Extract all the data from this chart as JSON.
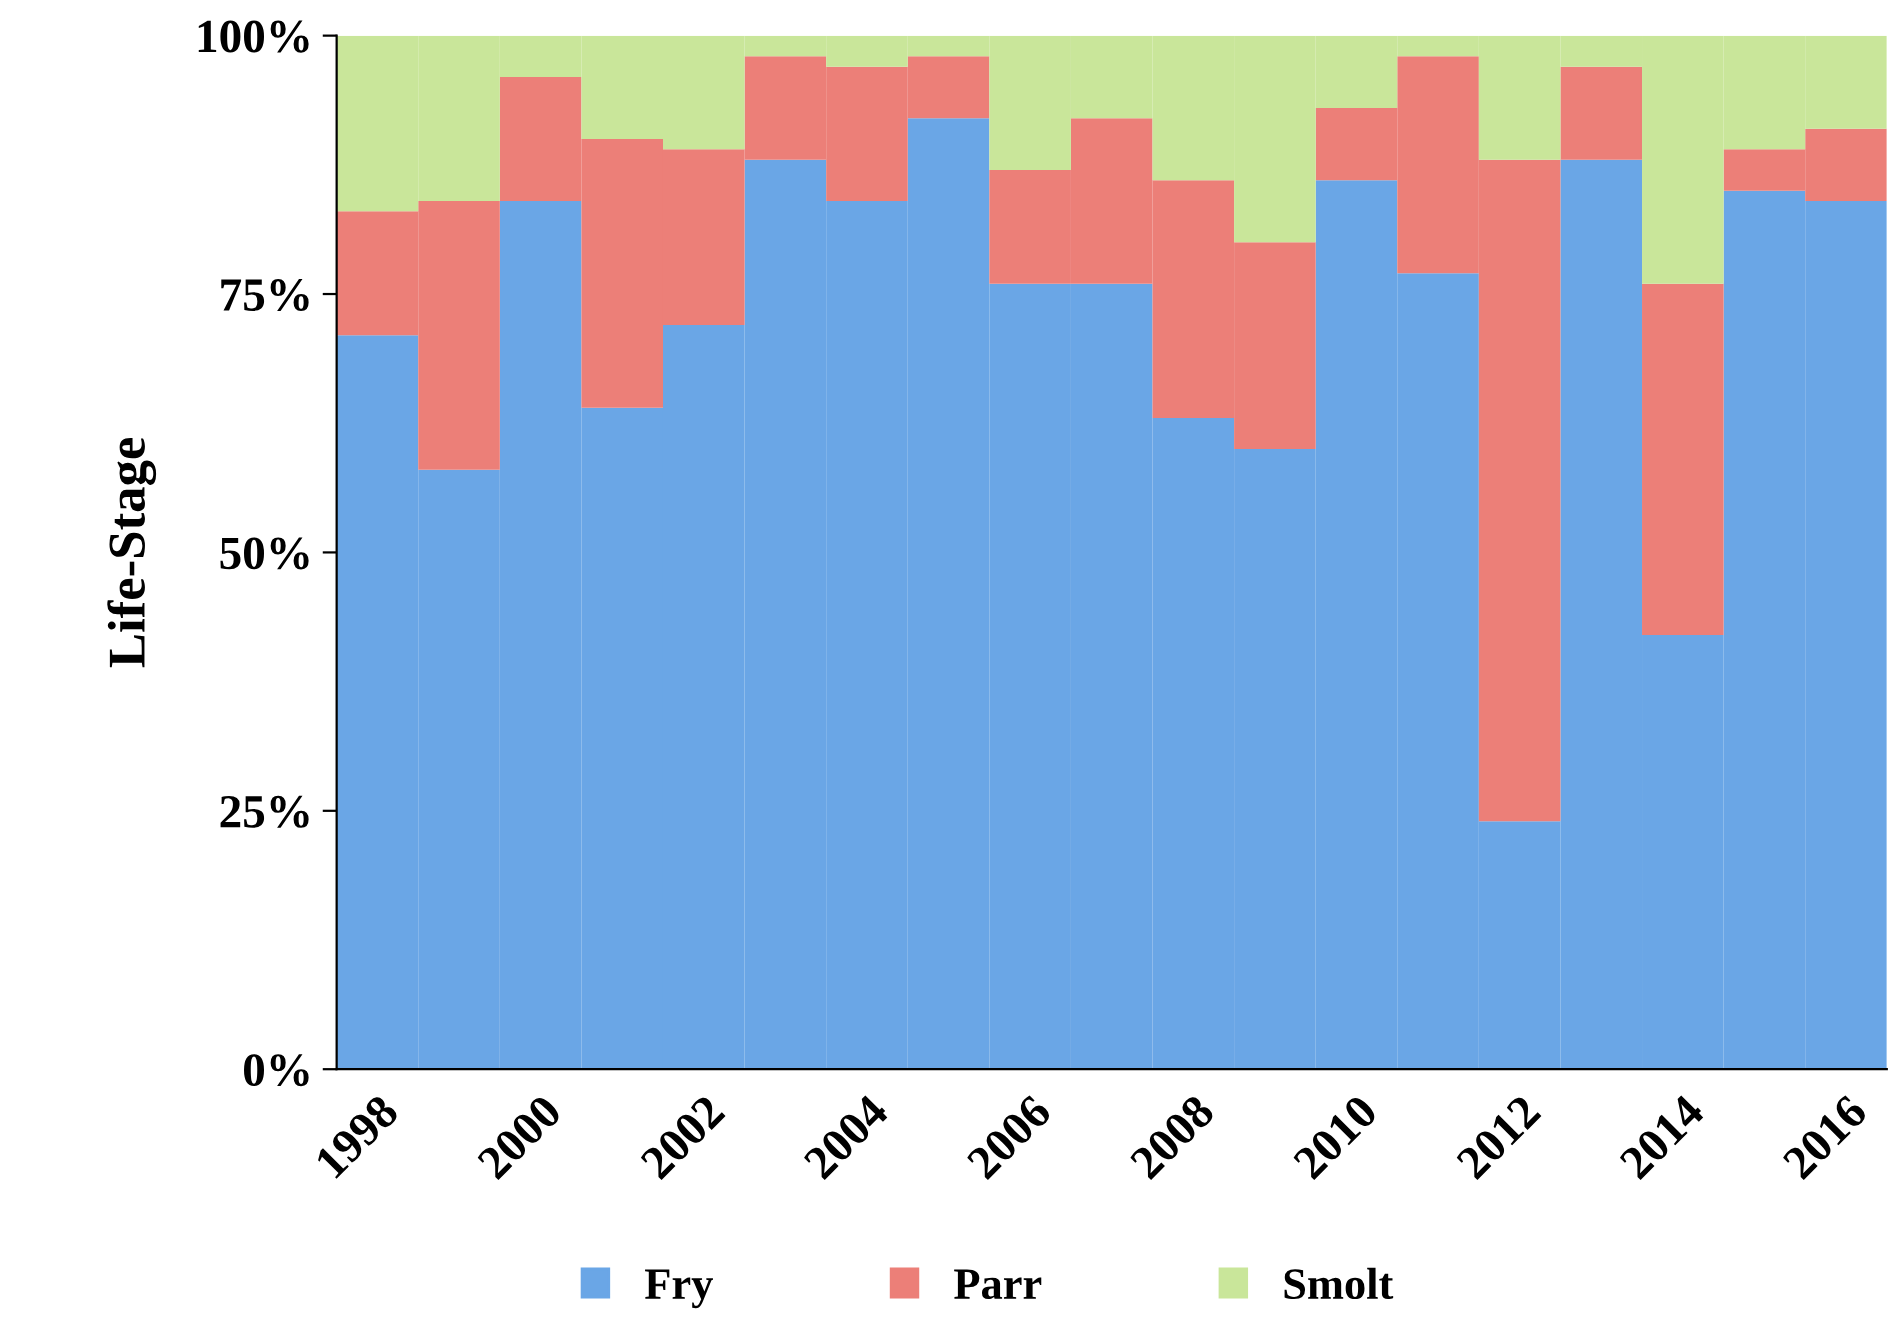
{
  "chart_data": {
    "type": "bar",
    "stacked": true,
    "ylabel": "Life-Stage",
    "categories": [
      "1998",
      null,
      "2000",
      null,
      "2002",
      null,
      "2004",
      null,
      "2006",
      null,
      "2008",
      null,
      "2010",
      null,
      "2012",
      null,
      "2014",
      null,
      "2016"
    ],
    "series": [
      {
        "name": "Fry",
        "color": "#6aa6e6",
        "values": [
          71,
          58,
          84,
          64,
          72,
          88,
          84,
          92,
          76,
          76,
          63,
          60,
          86,
          77,
          24,
          88,
          42,
          85,
          84
        ]
      },
      {
        "name": "Parr",
        "color": "#ec7f78",
        "values": [
          12,
          26,
          12,
          26,
          17,
          10,
          13,
          6,
          11,
          16,
          23,
          20,
          7,
          21,
          64,
          9,
          34,
          4,
          7
        ]
      },
      {
        "name": "Smolt",
        "color": "#c9e69a",
        "values": [
          17,
          16,
          4,
          10,
          11,
          2,
          3,
          2,
          13,
          8,
          14,
          20,
          7,
          2,
          12,
          3,
          24,
          11,
          9
        ]
      }
    ],
    "ylim": [
      0,
      100
    ],
    "yticks": [
      {
        "value": 0,
        "label": "0%"
      },
      {
        "value": 25,
        "label": "25%"
      },
      {
        "value": 50,
        "label": "50%"
      },
      {
        "value": 75,
        "label": "75%"
      },
      {
        "value": 100,
        "label": "100%"
      }
    ],
    "grid": false,
    "legend": "bottom"
  }
}
